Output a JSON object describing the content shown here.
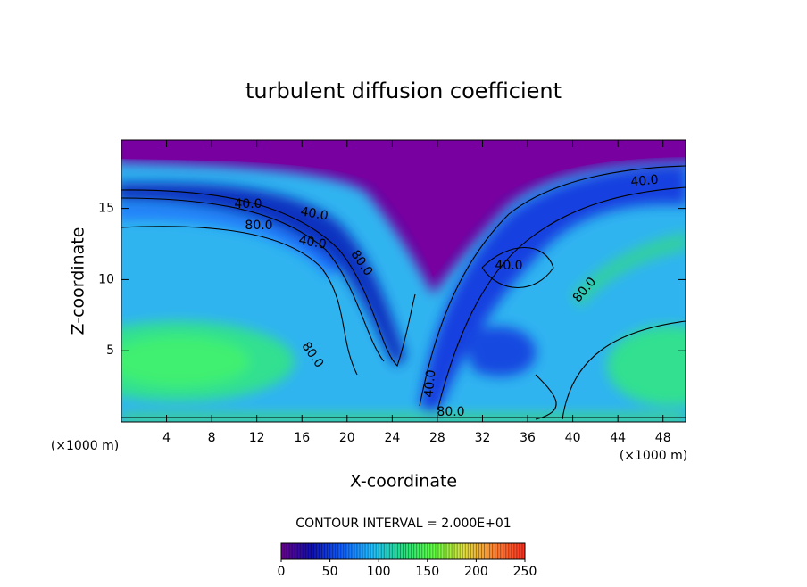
{
  "chart_data": {
    "type": "contour",
    "title": "turbulent diffusion coefficient",
    "xlabel": "X-coordinate",
    "ylabel": "Z-coordinate",
    "xunit": "(×1000 m)",
    "yunit": "(×1000 m)",
    "xlim": [
      0,
      50
    ],
    "xticks": [
      4,
      8,
      12,
      16,
      20,
      24,
      28,
      32,
      36,
      40,
      44,
      48
    ],
    "ylim": [
      0,
      19.8
    ],
    "yticks": [
      5,
      10,
      15
    ],
    "contour_interval": "CONTOUR INTERVAL = 2.000E+01",
    "contour_labels": [
      {
        "value": 40,
        "label": "40.0"
      },
      {
        "value": 80,
        "label": "80.0"
      },
      {
        "value": 40,
        "label": "40.0"
      },
      {
        "value": 40,
        "label": "40.0"
      },
      {
        "value": 80,
        "label": "80.0"
      },
      {
        "value": 80,
        "label": "80.0"
      },
      {
        "value": 40,
        "label": "40.0"
      },
      {
        "value": 80,
        "label": "80.0"
      },
      {
        "value": 40,
        "label": "40.0"
      },
      {
        "value": 80,
        "label": "80.0"
      },
      {
        "value": 40,
        "label": "40.0"
      }
    ],
    "colorbar": {
      "lim": [
        0,
        250
      ],
      "ticks": [
        0,
        50,
        100,
        150,
        200,
        250
      ],
      "colors": [
        "#6a0090",
        "#1010b0",
        "#1060ff",
        "#20c0ff",
        "#20e080",
        "#60ff40",
        "#e0e040",
        "#ff8030",
        "#ff3020"
      ]
    }
  }
}
